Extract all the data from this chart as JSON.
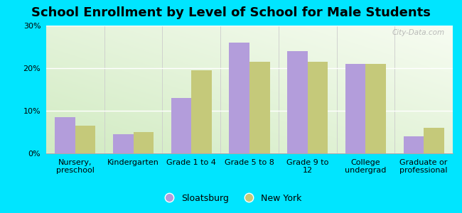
{
  "title": "School Enrollment by Level of School for Male Students",
  "categories": [
    "Nursery,\npreschool",
    "Kindergarten",
    "Grade 1 to 4",
    "Grade 5 to 8",
    "Grade 9 to\n12",
    "College\nundergrad",
    "Graduate or\nprofessional"
  ],
  "sloatsburg": [
    8.5,
    4.5,
    13.0,
    26.0,
    24.0,
    21.0,
    4.0
  ],
  "new_york": [
    6.5,
    5.0,
    19.5,
    21.5,
    21.5,
    21.0,
    6.0
  ],
  "sloatsburg_color": "#b39ddb",
  "new_york_color": "#c5c97a",
  "background_color": "#00e5ff",
  "ylim": [
    0,
    30
  ],
  "yticks": [
    0,
    10,
    20,
    30
  ],
  "ytick_labels": [
    "0%",
    "10%",
    "20%",
    "30%"
  ],
  "title_fontsize": 13,
  "tick_fontsize": 8,
  "legend_fontsize": 9,
  "bar_width": 0.35,
  "watermark": "City-Data.com"
}
